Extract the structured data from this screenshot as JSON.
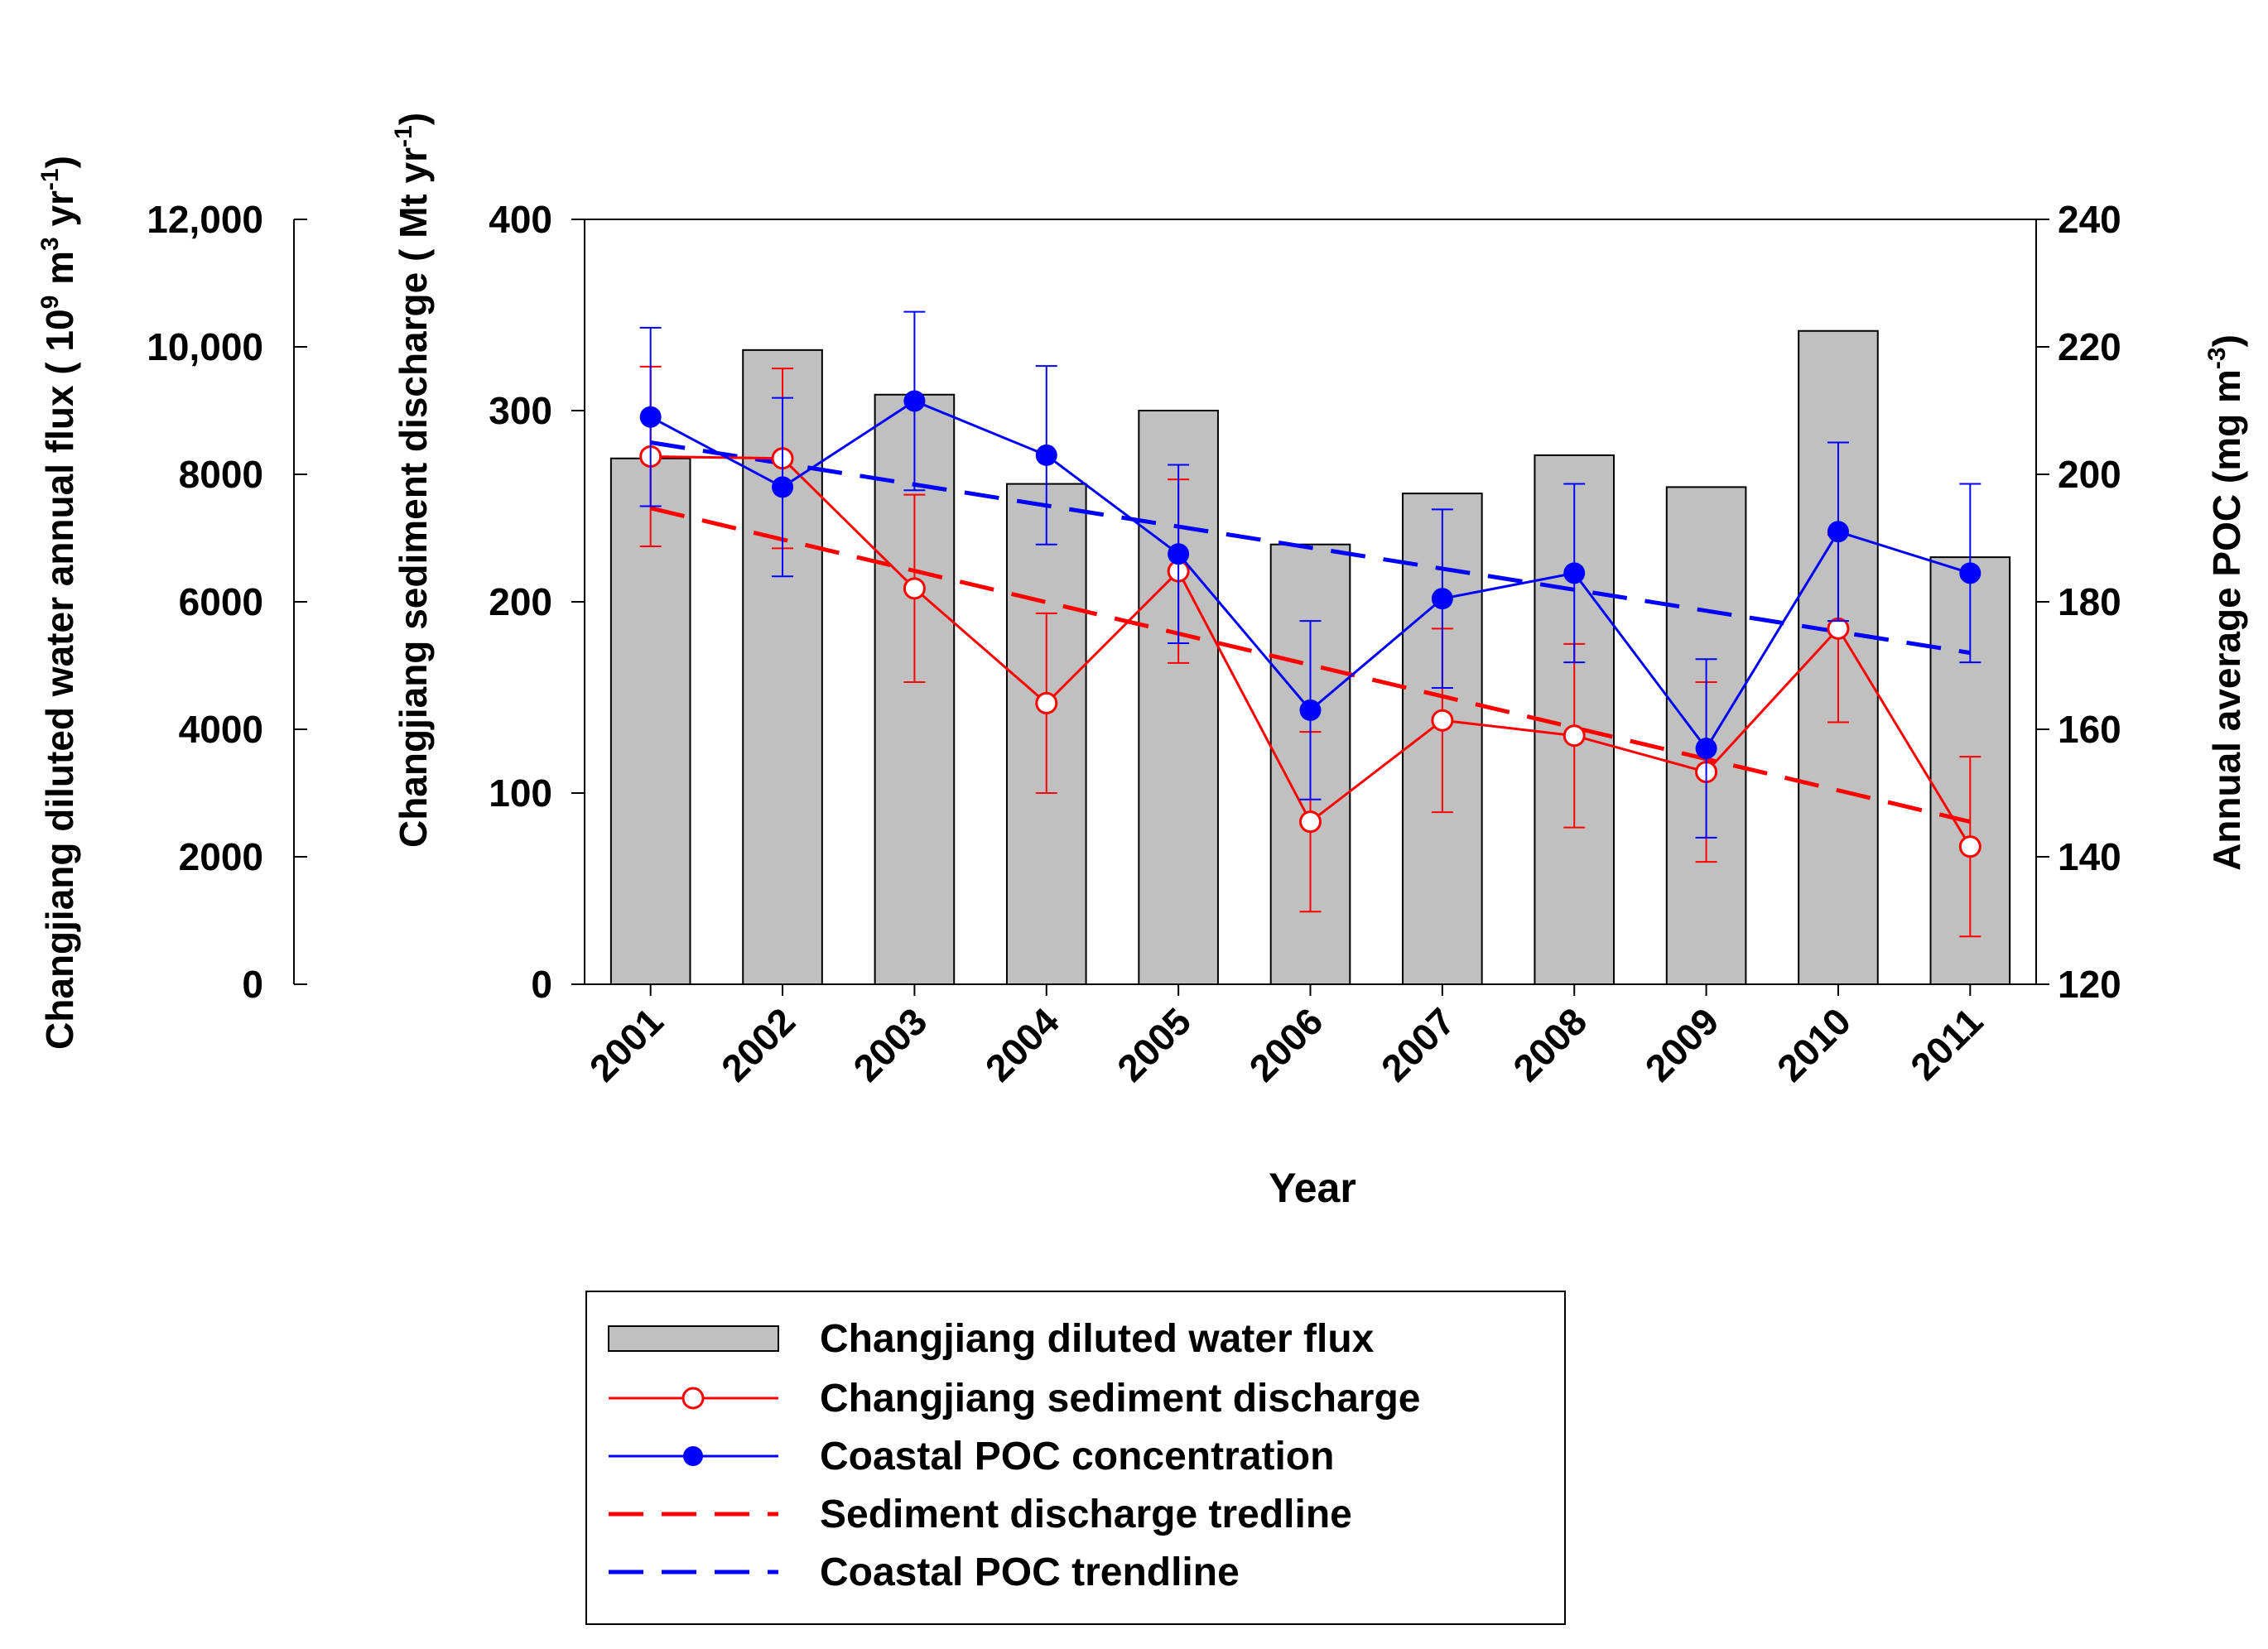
{
  "chart_data": {
    "type": "bar+line",
    "categories": [
      "2001",
      "2002",
      "2003",
      "2004",
      "2005",
      "2006",
      "2007",
      "2008",
      "2009",
      "2010",
      "2011"
    ],
    "xlabel": "Year",
    "axes": {
      "far_left": {
        "label_main": "Changjiang diluted water annual flux ( 10",
        "label_sup1": "9",
        "label_mid1": " m",
        "label_sup2": "3",
        "label_mid2": " yr",
        "label_sup3": "-1",
        "label_end": ")",
        "ylim": [
          0,
          12000
        ],
        "ticks": [
          0,
          2000,
          4000,
          6000,
          8000,
          10000,
          12000
        ],
        "tick_labels": [
          "0",
          "2000",
          "4000",
          "6000",
          "8000",
          "10,000",
          "12,000"
        ]
      },
      "left": {
        "label_main": "Changjiang sediment discharge ( Mt yr",
        "label_sup": "-1",
        "label_end": ")",
        "ylim": [
          0,
          400
        ],
        "ticks": [
          0,
          100,
          200,
          300,
          400
        ],
        "tick_labels": [
          "0",
          "100",
          "200",
          "300",
          "400"
        ]
      },
      "right": {
        "label_main": "Annual average POC (mg m",
        "label_sup": "-3",
        "label_end": ")",
        "ylim": [
          120,
          240
        ],
        "ticks": [
          120,
          140,
          160,
          180,
          200,
          220,
          240
        ],
        "tick_labels": [
          "120",
          "140",
          "160",
          "180",
          "200",
          "220",
          "240"
        ]
      }
    },
    "series": [
      {
        "name": "Changjiang diluted water flux",
        "kind": "bar",
        "axis": "far_left",
        "color": "#c0c0c0",
        "values": [
          8250,
          9950,
          9250,
          7850,
          9000,
          6900,
          7700,
          8300,
          7800,
          10250,
          6700
        ]
      },
      {
        "name": "Changjiang sediment discharge",
        "kind": "line",
        "axis": "left",
        "color": "#ff0000",
        "marker": "open-circle",
        "values": [
          276,
          275,
          207,
          147,
          216,
          85,
          138,
          130,
          111,
          186,
          72
        ],
        "error": [
          47,
          47,
          49,
          47,
          48,
          47,
          48,
          48,
          47,
          49,
          47
        ]
      },
      {
        "name": "Coastal POC concentration",
        "kind": "line",
        "axis": "right",
        "color": "#0000ff",
        "marker": "filled-circle",
        "values": [
          209,
          198,
          211.5,
          203,
          187.5,
          163,
          180.5,
          184.5,
          157,
          191,
          184.5
        ],
        "error": [
          14,
          14,
          14,
          14,
          14,
          14,
          14,
          14,
          14,
          14,
          14
        ]
      },
      {
        "name": "Sediment discharge tredline",
        "kind": "trend",
        "axis": "left",
        "color": "#ff0000",
        "dash": "long",
        "start": 249,
        "end": 85
      },
      {
        "name": "Coastal POC trendline",
        "kind": "trend",
        "axis": "right",
        "color": "#0000ff",
        "dash": "long",
        "start": 205,
        "end": 172
      }
    ],
    "legend": {
      "placement": "bottom-center",
      "entries": [
        "Changjiang diluted water flux",
        "Changjiang sediment discharge",
        "Coastal POC concentration",
        "Sediment discharge tredline",
        "Coastal POC trendline"
      ]
    }
  }
}
